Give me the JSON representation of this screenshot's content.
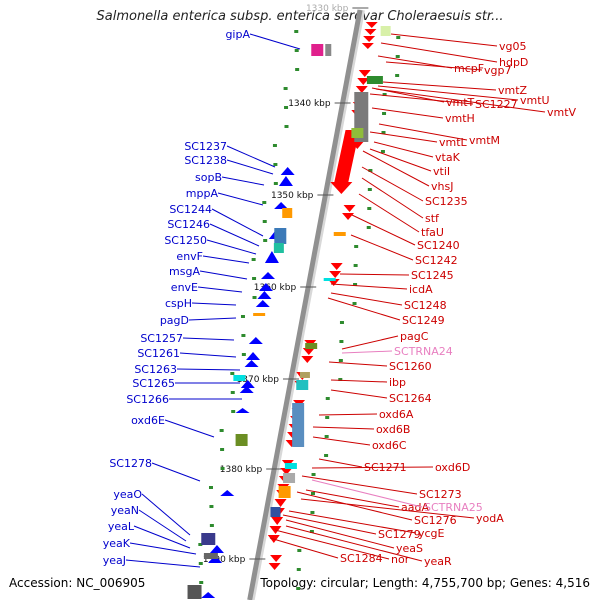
{
  "title": "Salmonella enterica subsp. enterica serovar Choleraesuis str...",
  "footer": {
    "accession": "Accession: NC_006905",
    "topology": "Topology: circular; Length: 4,755,700 bp; Genes: 4,516"
  },
  "ruler_labels": [
    "1330 kbp",
    "1340 kbp",
    "1350 kbp",
    "1360 kbp",
    "1370 kbp",
    "1380 kbp",
    "1390 kbp"
  ],
  "left_genes": [
    "gipA",
    "SC1237",
    "SC1238",
    "sopB",
    "mppA",
    "SC1244",
    "SC1246",
    "SC1250",
    "envF",
    "msgA",
    "envE",
    "cspH",
    "pagD",
    "SC1257",
    "SC1261",
    "SC1263",
    "SC1265",
    "SC1266",
    "oxd6E",
    "SC1278",
    "yeaO",
    "yeaN",
    "yeaL",
    "yeaK",
    "yeaJ"
  ],
  "right_genes": [
    "vg05",
    "hdpD",
    "mcpF",
    "vgp7",
    "vmtZ",
    "vmtU",
    "vmtV",
    "vmtT",
    "SC1227",
    "vmtH",
    "vmtM",
    "vmtL",
    "vtaK",
    "vtiI",
    "vhsJ",
    "SC1235",
    "stf",
    "tfaU",
    "SC1240",
    "SC1242",
    "SC1245",
    "icdA",
    "SC1248",
    "SC1249",
    "pagC",
    "SCTRNA24",
    "SC1260",
    "ibp",
    "SC1264",
    "oxd6A",
    "oxd6B",
    "oxd6C",
    "SC1271",
    "oxd6D",
    "SC1273",
    "aadA",
    "SCTRNA25",
    "SC1276",
    "yodA",
    "ycgE",
    "SC1279",
    "yeaS",
    "yeaR",
    "nor",
    "SC1284"
  ],
  "colors": {
    "left_label": "#0000cc",
    "left_arrow": "#0000ff",
    "right_label": "#cc0000",
    "right_arrow": "#ff0000",
    "rna_label": "#e87fc0",
    "backbone": "#909090",
    "tick": "#2e8b2e"
  }
}
